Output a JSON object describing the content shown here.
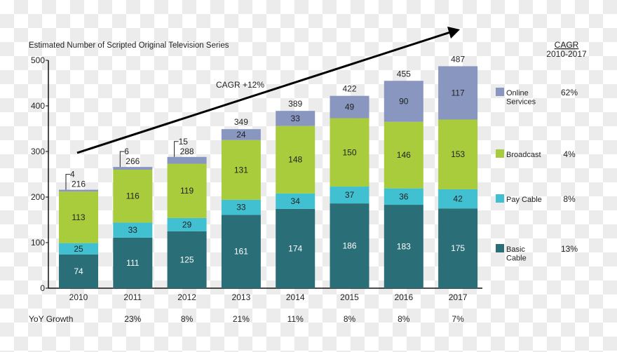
{
  "chart_data": {
    "type": "bar",
    "stacked": true,
    "title": "Estimated Number of Scripted Original Television Series",
    "categories": [
      "2010",
      "2011",
      "2012",
      "2013",
      "2014",
      "2015",
      "2016",
      "2017"
    ],
    "ylim": [
      0,
      500
    ],
    "yticks": [
      0,
      100,
      200,
      300,
      400,
      500
    ],
    "grid": false,
    "legend_placement": "right",
    "series": [
      {
        "name": "Basic Cable",
        "color": "#2a6e78",
        "label_color": "#ffffff",
        "values": [
          74,
          111,
          125,
          161,
          174,
          186,
          183,
          175
        ],
        "cagr": "13%"
      },
      {
        "name": "Pay Cable",
        "color": "#40c0d0",
        "label_color": "#222222",
        "values": [
          25,
          33,
          29,
          33,
          34,
          37,
          36,
          42
        ],
        "cagr": "8%"
      },
      {
        "name": "Broadcast",
        "color": "#a8cc3c",
        "label_color": "#222222",
        "values": [
          113,
          116,
          119,
          131,
          148,
          150,
          146,
          153
        ],
        "cagr": "4%"
      },
      {
        "name": "Online Services",
        "color": "#8896c0",
        "label_color": "#222222",
        "values": [
          4,
          6,
          15,
          24,
          33,
          49,
          90,
          117
        ],
        "cagr": "62%"
      }
    ],
    "totals": [
      216,
      266,
      288,
      349,
      389,
      422,
      455,
      487
    ],
    "legend_header": [
      "CAGR",
      "2010-2017"
    ],
    "annotation": "CAGR +12%",
    "yoy_label": "YoY Growth",
    "yoy_growth": [
      "",
      "23%",
      "8%",
      "21%",
      "11%",
      "8%",
      "8%",
      "7%"
    ]
  }
}
